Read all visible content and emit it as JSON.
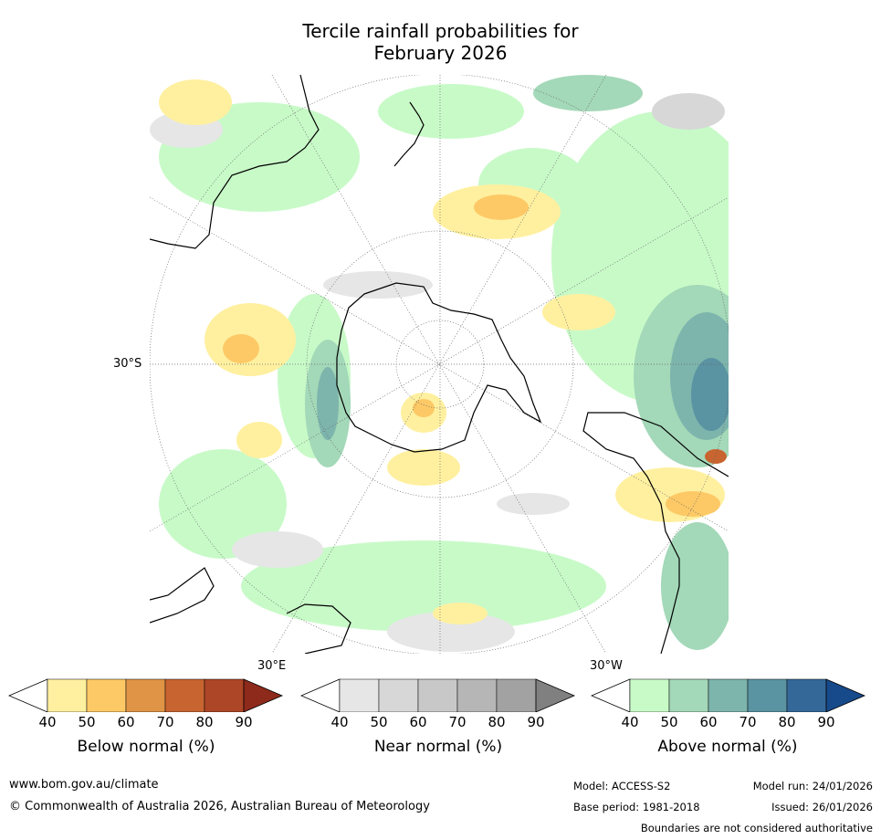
{
  "title_line1": "Tercile rainfall probabilities for",
  "title_line2": "February 2026",
  "map": {
    "labels": {
      "lat": "30°S",
      "lon_east": "30°E",
      "lon_west": "30°W"
    },
    "colors": {
      "ocean_bg": "#ffffff",
      "coast": "#000000",
      "grid": "#666666"
    }
  },
  "legends": [
    {
      "id": "below",
      "title": "Below normal (%)",
      "ticks": [
        "40",
        "50",
        "60",
        "70",
        "80",
        "90"
      ],
      "colors": [
        "#fff0a0",
        "#fdc966",
        "#e09446",
        "#c86430",
        "#ac4626",
        "#8e2a1c"
      ]
    },
    {
      "id": "near",
      "title": "Near normal (%)",
      "ticks": [
        "40",
        "50",
        "60",
        "70",
        "80",
        "90"
      ],
      "colors": [
        "#e6e6e6",
        "#d7d7d7",
        "#c8c8c8",
        "#b6b6b6",
        "#a2a2a2",
        "#808080"
      ]
    },
    {
      "id": "above",
      "title": "Above normal (%)",
      "ticks": [
        "40",
        "50",
        "60",
        "70",
        "80",
        "90"
      ],
      "colors": [
        "#c8fac8",
        "#a3d8b8",
        "#7db5ad",
        "#5a93a2",
        "#346899",
        "#164a8a"
      ]
    }
  ],
  "footer": {
    "website": "www.bom.gov.au/climate",
    "copyright": "© Commonwealth of Australia 2026, Australian Bureau of Meteorology",
    "model": "Model: ACCESS-S2",
    "base_period": "Base period: 1981-2018",
    "model_run": "Model run: 24/01/2026",
    "issued": "Issued: 26/01/2026",
    "disclaimer": "Boundaries are not considered authoritative"
  }
}
